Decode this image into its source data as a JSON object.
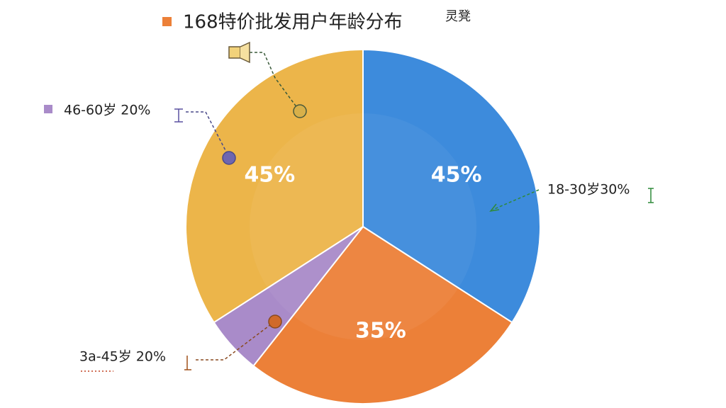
{
  "chart_data": {
    "type": "pie",
    "title": "168特价批发用户年龄分布",
    "subtitle": "灵凳",
    "values": [
      45,
      35,
      7,
      45
    ],
    "value_labels": [
      "45%",
      "35%",
      null,
      "45%"
    ],
    "colors": [
      "#3d8bdc",
      "#ec8038",
      "#a98bc9",
      "#ecb54a"
    ],
    "annotations": [
      "18-30岁30%",
      "3a-45岁 20%",
      "46-60岁 20%"
    ]
  }
}
